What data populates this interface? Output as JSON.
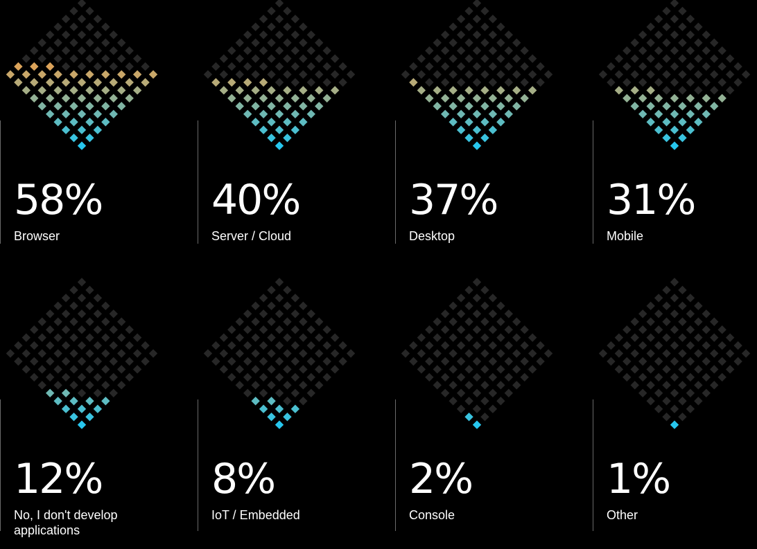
{
  "chart_data": {
    "type": "waffle",
    "title": "",
    "categories": [
      "Browser",
      "Server / Cloud",
      "Desktop",
      "Mobile",
      "No, I don't develop applications",
      "IoT / Embedded",
      "Console",
      "Other"
    ],
    "values": [
      58,
      40,
      37,
      31,
      12,
      8,
      2,
      1
    ],
    "value_labels": [
      "58%",
      "40%",
      "37%",
      "31%",
      "12%",
      "8%",
      "2%",
      "1%"
    ],
    "grid": "10x10 diamond",
    "colors": {
      "empty": "#272727",
      "low": "#27c6ee",
      "high": "#ff9c3c",
      "background": "#000000",
      "divider": "#6b6b6b"
    }
  }
}
